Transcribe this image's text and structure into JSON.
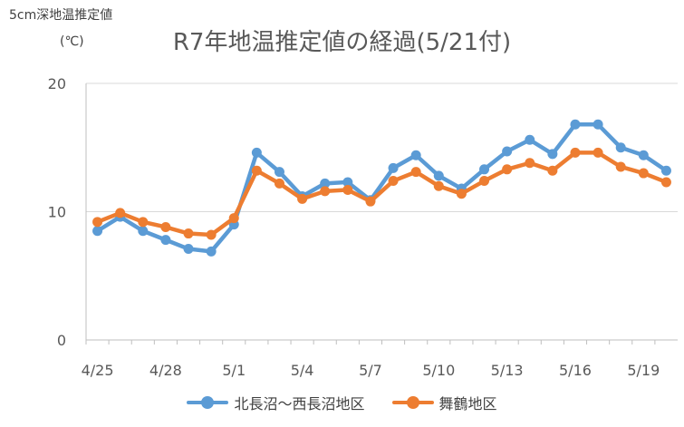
{
  "chart_data": {
    "type": "line",
    "title": "R7年地温推定値の経過(5/21付)",
    "ylabel": "5cm深地温推定値",
    "yunit": "(℃)",
    "ylim": [
      0,
      20
    ],
    "yticks": [
      0,
      10,
      20
    ],
    "x": [
      "4/25",
      "4/26",
      "4/27",
      "4/28",
      "4/29",
      "4/30",
      "5/1",
      "5/2",
      "5/3",
      "5/4",
      "5/5",
      "5/6",
      "5/7",
      "5/8",
      "5/9",
      "5/10",
      "5/11",
      "5/12",
      "5/13",
      "5/14",
      "5/15",
      "5/16",
      "5/17",
      "5/18",
      "5/19",
      "5/20"
    ],
    "xtick_labels": [
      "4/25",
      "4/28",
      "5/1",
      "5/4",
      "5/7",
      "5/10",
      "5/13",
      "5/16",
      "5/19"
    ],
    "series": [
      {
        "name": "北長沼～西長沼地区",
        "color": "#5B9BD5",
        "values": [
          8.5,
          9.6,
          8.5,
          7.8,
          7.1,
          6.9,
          9.0,
          14.6,
          13.1,
          11.2,
          12.2,
          12.3,
          10.9,
          13.4,
          14.4,
          12.8,
          11.8,
          13.3,
          14.7,
          15.6,
          14.5,
          16.8,
          16.8,
          15.0,
          14.4,
          13.2
        ]
      },
      {
        "name": "舞鶴地区",
        "color": "#ED7D31",
        "values": [
          9.2,
          9.9,
          9.2,
          8.8,
          8.3,
          8.2,
          9.5,
          13.2,
          12.2,
          11.0,
          11.6,
          11.7,
          10.8,
          12.4,
          13.1,
          12.0,
          11.4,
          12.4,
          13.3,
          13.8,
          13.2,
          14.6,
          14.6,
          13.5,
          13.0,
          12.3
        ]
      }
    ],
    "grid": "horizontal",
    "legend": "bottom"
  }
}
